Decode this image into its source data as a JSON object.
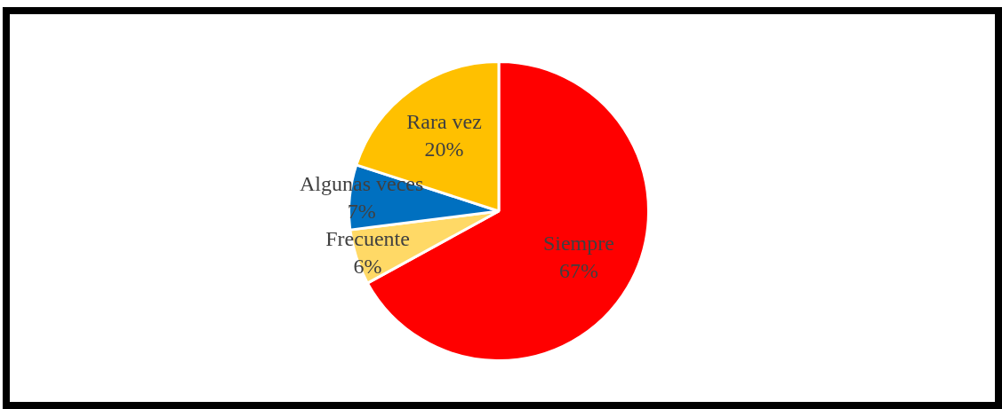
{
  "chart_data": {
    "type": "pie",
    "categories": [
      "Siempre",
      "Frecuente",
      "Algunas veces",
      "Rara vez"
    ],
    "values": [
      67,
      6,
      7,
      20
    ],
    "colors": [
      "#ff0000",
      "#ffd966",
      "#0070c0",
      "#ffc000"
    ],
    "value_labels": [
      "67%",
      "6%",
      "7%",
      "20%"
    ],
    "legend": false
  }
}
